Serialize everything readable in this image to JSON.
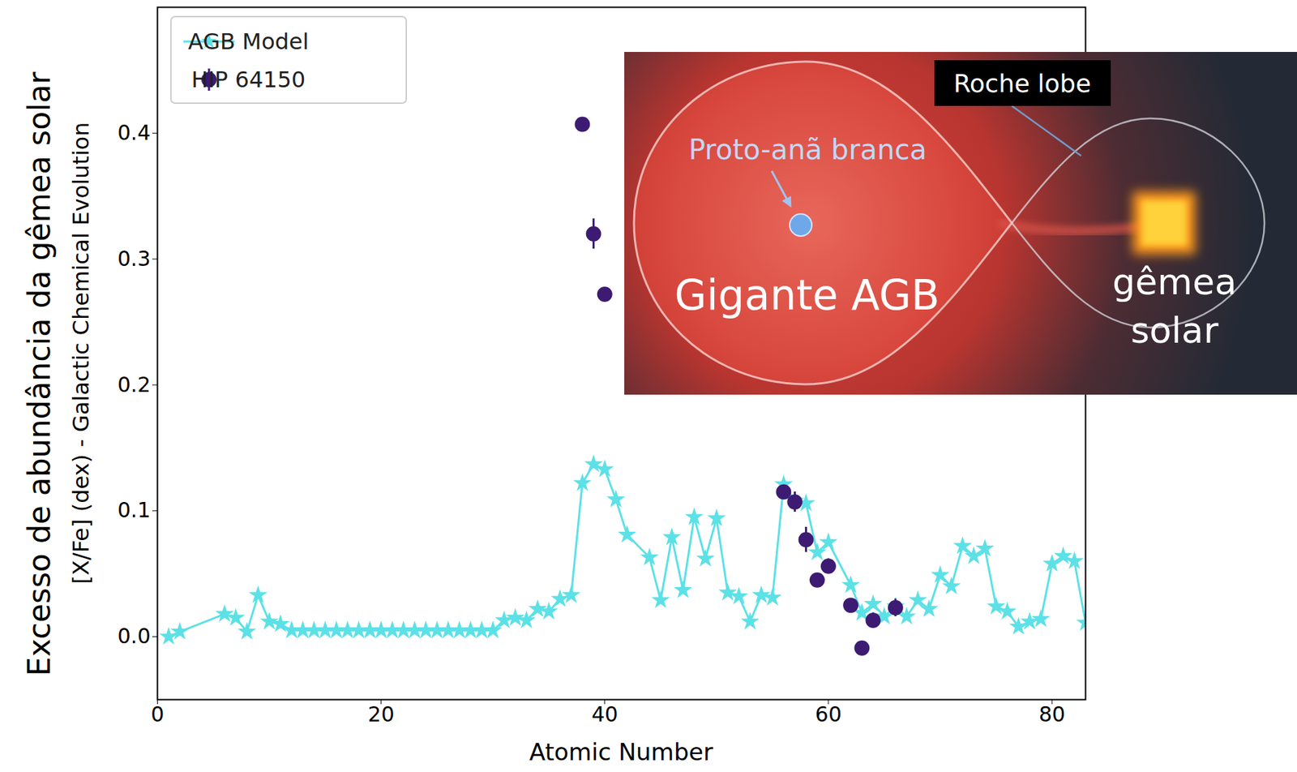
{
  "chart_data": {
    "type": "line",
    "x_label": "Atomic Number",
    "y_label": "[X/Fe] (dex) - Galactic Chemical Evolution",
    "y_label_outer": "Excesso de abundância da gêmea solar",
    "xlim": [
      0,
      83
    ],
    "ylim": [
      -0.05,
      0.5
    ],
    "xticks": [
      0,
      20,
      40,
      60,
      80
    ],
    "yticks": [
      {
        "value": 0,
        "label": "0.0"
      },
      {
        "value": 0.1,
        "label": "0.1"
      },
      {
        "value": 0.2,
        "label": "0.2"
      },
      {
        "value": 0.3,
        "label": "0.3"
      },
      {
        "value": 0.4,
        "label": "0.4"
      }
    ],
    "grid": false,
    "legend": "upper left",
    "series": [
      {
        "name": "AGB Model",
        "type": "line",
        "color": "#5ce1e6",
        "marker": "star",
        "line_style": "solid",
        "x": [
          1,
          2,
          6,
          7,
          8,
          9,
          10,
          11,
          12,
          13,
          14,
          15,
          16,
          17,
          18,
          19,
          20,
          21,
          22,
          23,
          24,
          25,
          26,
          27,
          28,
          29,
          30,
          31,
          32,
          33,
          34,
          35,
          36,
          37,
          38,
          39,
          40,
          41,
          42,
          44,
          45,
          46,
          47,
          48,
          49,
          50,
          51,
          52,
          53,
          54,
          55,
          56,
          57,
          58,
          59,
          60,
          62,
          63,
          64,
          65,
          66,
          67,
          68,
          69,
          70,
          71,
          72,
          73,
          74,
          75,
          76,
          77,
          78,
          79,
          80,
          81,
          82,
          83
        ],
        "values": [
          0.0,
          0.004,
          0.018,
          0.015,
          0.004,
          0.033,
          0.012,
          0.01,
          0.005,
          0.005,
          0.005,
          0.005,
          0.005,
          0.005,
          0.005,
          0.005,
          0.005,
          0.005,
          0.005,
          0.005,
          0.005,
          0.005,
          0.005,
          0.005,
          0.005,
          0.005,
          0.005,
          0.013,
          0.015,
          0.013,
          0.022,
          0.02,
          0.03,
          0.033,
          0.122,
          0.137,
          0.133,
          0.109,
          0.081,
          0.063,
          0.029,
          0.079,
          0.037,
          0.095,
          0.062,
          0.094,
          0.035,
          0.032,
          0.012,
          0.033,
          0.031,
          0.121,
          0.108,
          0.106,
          0.067,
          0.075,
          0.041,
          0.019,
          0.026,
          0.016,
          0.024,
          0.016,
          0.029,
          0.022,
          0.049,
          0.04,
          0.072,
          0.064,
          0.07,
          0.024,
          0.02,
          0.008,
          0.012,
          0.014,
          0.058,
          0.064,
          0.06,
          0.011
        ]
      },
      {
        "name": "HIP 64150",
        "type": "scatter",
        "color": "#3d1b72",
        "marker": "circle",
        "x": [
          38,
          39,
          40,
          56,
          57,
          58,
          59,
          60,
          62,
          63,
          64,
          66
        ],
        "values": [
          0.407,
          0.32,
          0.272,
          0.115,
          0.107,
          0.077,
          0.045,
          0.056,
          0.025,
          -0.009,
          0.013,
          0.023
        ],
        "errors": [
          0.005,
          0.012,
          0.005,
          0.005,
          0.008,
          0.01,
          0.005,
          0.006,
          0.005,
          0.004,
          0.006,
          0.007
        ]
      }
    ]
  },
  "inset": {
    "roche_lobe": "Roche lobe",
    "proto_white_dwarf": "Proto-anã branca",
    "giant": "Gigante AGB",
    "solar_twin": "gêmea solar"
  }
}
